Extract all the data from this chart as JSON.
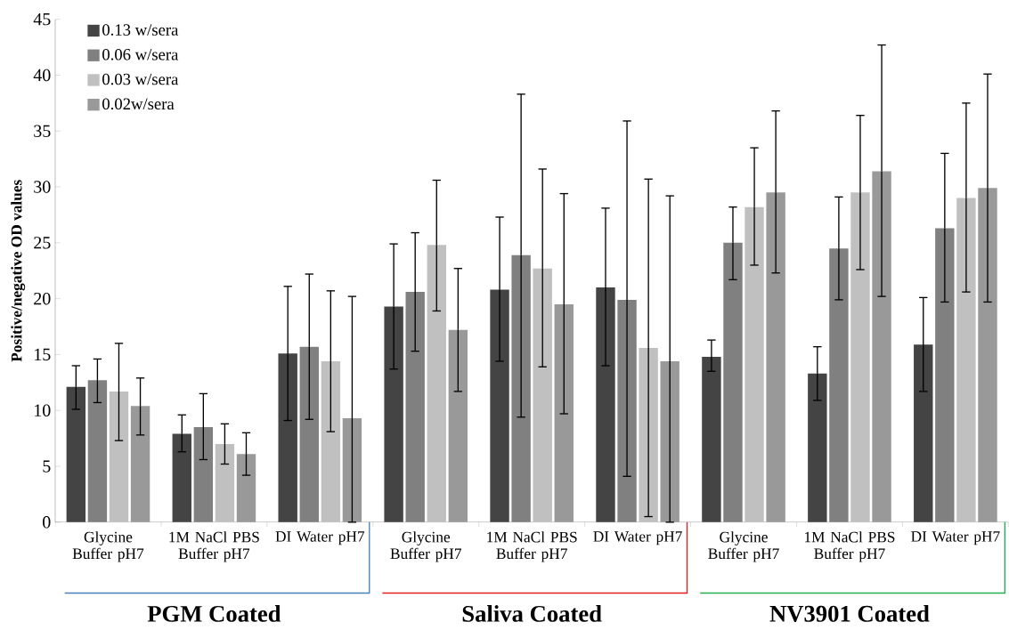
{
  "chart_data": {
    "type": "bar",
    "ylabel": "Positive/negative OD values",
    "categories": [
      "Glycine Buffer pH7",
      "1M NaCl PBS Buffer pH7",
      "DI Water pH7",
      "Glycine Buffer pH7",
      "1M NaCl PBS Buffer pH7",
      "DI Water pH7",
      "Glycine Buffer pH7",
      "1M NaCl PBS Buffer pH7",
      "DI Water pH7"
    ],
    "series": [
      {
        "name": "0.13 w/sera",
        "color": "#444444",
        "values": [
          12.1,
          7.9,
          15.1,
          19.3,
          20.8,
          21.0,
          14.8,
          13.3,
          15.9
        ],
        "errors": [
          [
            10.1,
            14.0
          ],
          [
            6.3,
            9.6
          ],
          [
            9.1,
            21.1
          ],
          [
            13.7,
            24.9
          ],
          [
            14.4,
            27.3
          ],
          [
            14.0,
            28.1
          ],
          [
            13.5,
            16.3
          ],
          [
            10.9,
            15.7
          ],
          [
            11.7,
            20.1
          ]
        ]
      },
      {
        "name": "0.06 w/sera",
        "color": "#808080",
        "values": [
          12.7,
          8.5,
          15.7,
          20.6,
          23.9,
          19.9,
          25.0,
          24.5,
          26.3
        ],
        "errors": [
          [
            10.7,
            14.6
          ],
          [
            5.6,
            11.5
          ],
          [
            9.2,
            22.2
          ],
          [
            15.3,
            25.9
          ],
          [
            9.4,
            38.3
          ],
          [
            4.1,
            35.9
          ],
          [
            21.7,
            28.2
          ],
          [
            19.9,
            29.1
          ],
          [
            19.7,
            33.0
          ]
        ]
      },
      {
        "name": "0.03 w/sera",
        "color": "#c0c0c0",
        "values": [
          11.7,
          7.0,
          14.4,
          24.8,
          22.7,
          15.6,
          28.2,
          29.5,
          29.0
        ],
        "errors": [
          [
            7.3,
            16.0
          ],
          [
            5.2,
            8.8
          ],
          [
            8.1,
            20.7
          ],
          [
            18.9,
            30.6
          ],
          [
            13.9,
            31.6
          ],
          [
            0.5,
            30.7
          ],
          [
            23.0,
            33.5
          ],
          [
            22.6,
            36.4
          ],
          [
            20.6,
            37.5
          ]
        ]
      },
      {
        "name": "0.02w/sera",
        "color": "#999999",
        "values": [
          10.4,
          6.1,
          9.3,
          17.2,
          19.5,
          14.4,
          29.5,
          31.4,
          29.9
        ],
        "errors": [
          [
            7.8,
            12.9
          ],
          [
            4.2,
            8.0
          ],
          [
            0,
            20.2
          ],
          [
            11.7,
            22.7
          ],
          [
            9.7,
            29.4
          ],
          [
            0,
            29.2
          ],
          [
            22.3,
            36.8
          ],
          [
            20.2,
            42.7
          ],
          [
            19.7,
            40.1
          ]
        ]
      }
    ],
    "ylim": [
      0,
      45
    ],
    "yticks": [
      0,
      5,
      10,
      15,
      20,
      25,
      30,
      35,
      40,
      45
    ],
    "legend": "top left",
    "annotations": [
      "PGM Coated",
      "Saliva Coated",
      "NV3901 Coated"
    ]
  }
}
